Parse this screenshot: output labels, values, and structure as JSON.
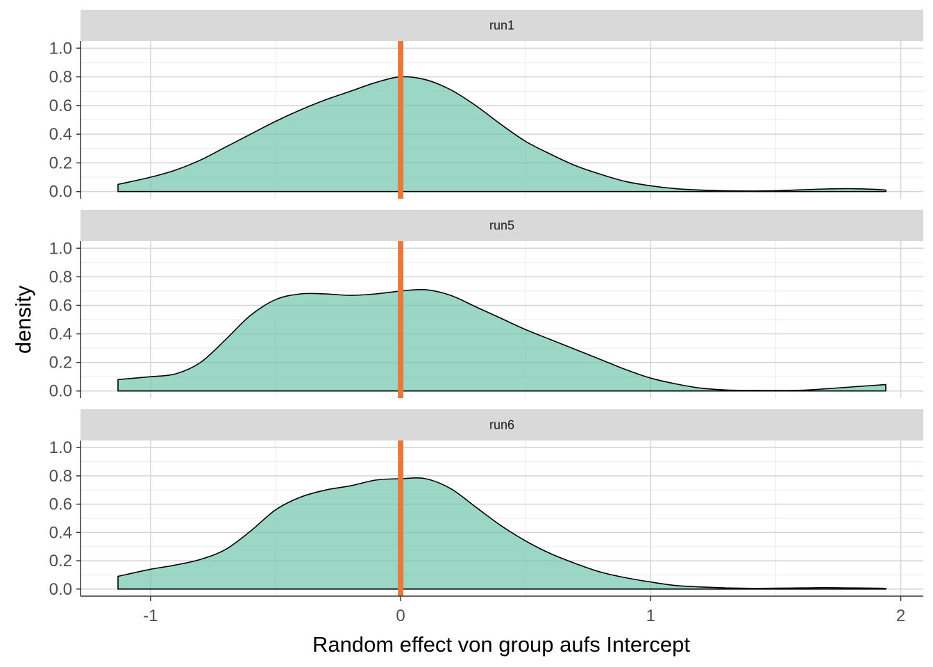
{
  "chart_data": {
    "type": "area",
    "xlabel": "Random effect von group aufs Intercept",
    "ylabel": "density",
    "xlim": [
      -1.28,
      2.09
    ],
    "ylim": [
      -0.05,
      1.05
    ],
    "x_ticks": [
      -1,
      0,
      1,
      2
    ],
    "x_tick_labels": [
      "-1",
      "0",
      "1",
      "2"
    ],
    "y_ticks": [
      0.0,
      0.2,
      0.4,
      0.6,
      0.8,
      1.0
    ],
    "y_tick_labels": [
      "0.0",
      "0.2",
      "0.4",
      "0.6",
      "0.8",
      "1.0"
    ],
    "grid": true,
    "fill_color": "#66c2a5",
    "fill_opacity": 0.65,
    "vline": {
      "x": 0,
      "color": "#e8783c"
    },
    "facet_strip_color": "#d9d9d9",
    "panels": [
      {
        "label": "run1",
        "x": [
          -1.13,
          -1.0,
          -0.9,
          -0.8,
          -0.7,
          -0.6,
          -0.5,
          -0.4,
          -0.3,
          -0.2,
          -0.1,
          0.0,
          0.1,
          0.2,
          0.3,
          0.4,
          0.5,
          0.6,
          0.7,
          0.8,
          0.9,
          1.0,
          1.1,
          1.2,
          1.3,
          1.4,
          1.5,
          1.6,
          1.7,
          1.8,
          1.9,
          1.94
        ],
        "y": [
          0.05,
          0.1,
          0.15,
          0.22,
          0.31,
          0.4,
          0.49,
          0.57,
          0.64,
          0.7,
          0.76,
          0.8,
          0.78,
          0.71,
          0.6,
          0.47,
          0.35,
          0.26,
          0.18,
          0.12,
          0.07,
          0.04,
          0.02,
          0.01,
          0.005,
          0.004,
          0.006,
          0.012,
          0.018,
          0.02,
          0.015,
          0.01
        ]
      },
      {
        "label": "run5",
        "x": [
          -1.13,
          -1.0,
          -0.9,
          -0.8,
          -0.7,
          -0.6,
          -0.5,
          -0.4,
          -0.3,
          -0.2,
          -0.1,
          0.0,
          0.1,
          0.2,
          0.3,
          0.4,
          0.5,
          0.6,
          0.7,
          0.8,
          0.9,
          1.0,
          1.1,
          1.2,
          1.3,
          1.4,
          1.5,
          1.6,
          1.7,
          1.8,
          1.9,
          1.94
        ],
        "y": [
          0.08,
          0.1,
          0.12,
          0.2,
          0.36,
          0.53,
          0.64,
          0.68,
          0.68,
          0.67,
          0.68,
          0.7,
          0.71,
          0.67,
          0.59,
          0.51,
          0.43,
          0.36,
          0.29,
          0.22,
          0.15,
          0.09,
          0.05,
          0.02,
          0.007,
          0.004,
          0.003,
          0.005,
          0.015,
          0.028,
          0.04,
          0.045
        ]
      },
      {
        "label": "run6",
        "x": [
          -1.13,
          -1.0,
          -0.9,
          -0.8,
          -0.7,
          -0.6,
          -0.5,
          -0.4,
          -0.3,
          -0.2,
          -0.1,
          0.0,
          0.1,
          0.2,
          0.3,
          0.4,
          0.5,
          0.6,
          0.7,
          0.8,
          0.9,
          1.0,
          1.1,
          1.2,
          1.3,
          1.4,
          1.5,
          1.6,
          1.7,
          1.8,
          1.9,
          1.94
        ],
        "y": [
          0.09,
          0.14,
          0.17,
          0.21,
          0.28,
          0.41,
          0.56,
          0.65,
          0.7,
          0.73,
          0.77,
          0.78,
          0.78,
          0.71,
          0.58,
          0.45,
          0.34,
          0.25,
          0.18,
          0.12,
          0.08,
          0.05,
          0.025,
          0.015,
          0.008,
          0.005,
          0.006,
          0.008,
          0.01,
          0.008,
          0.006,
          0.005
        ]
      }
    ]
  }
}
